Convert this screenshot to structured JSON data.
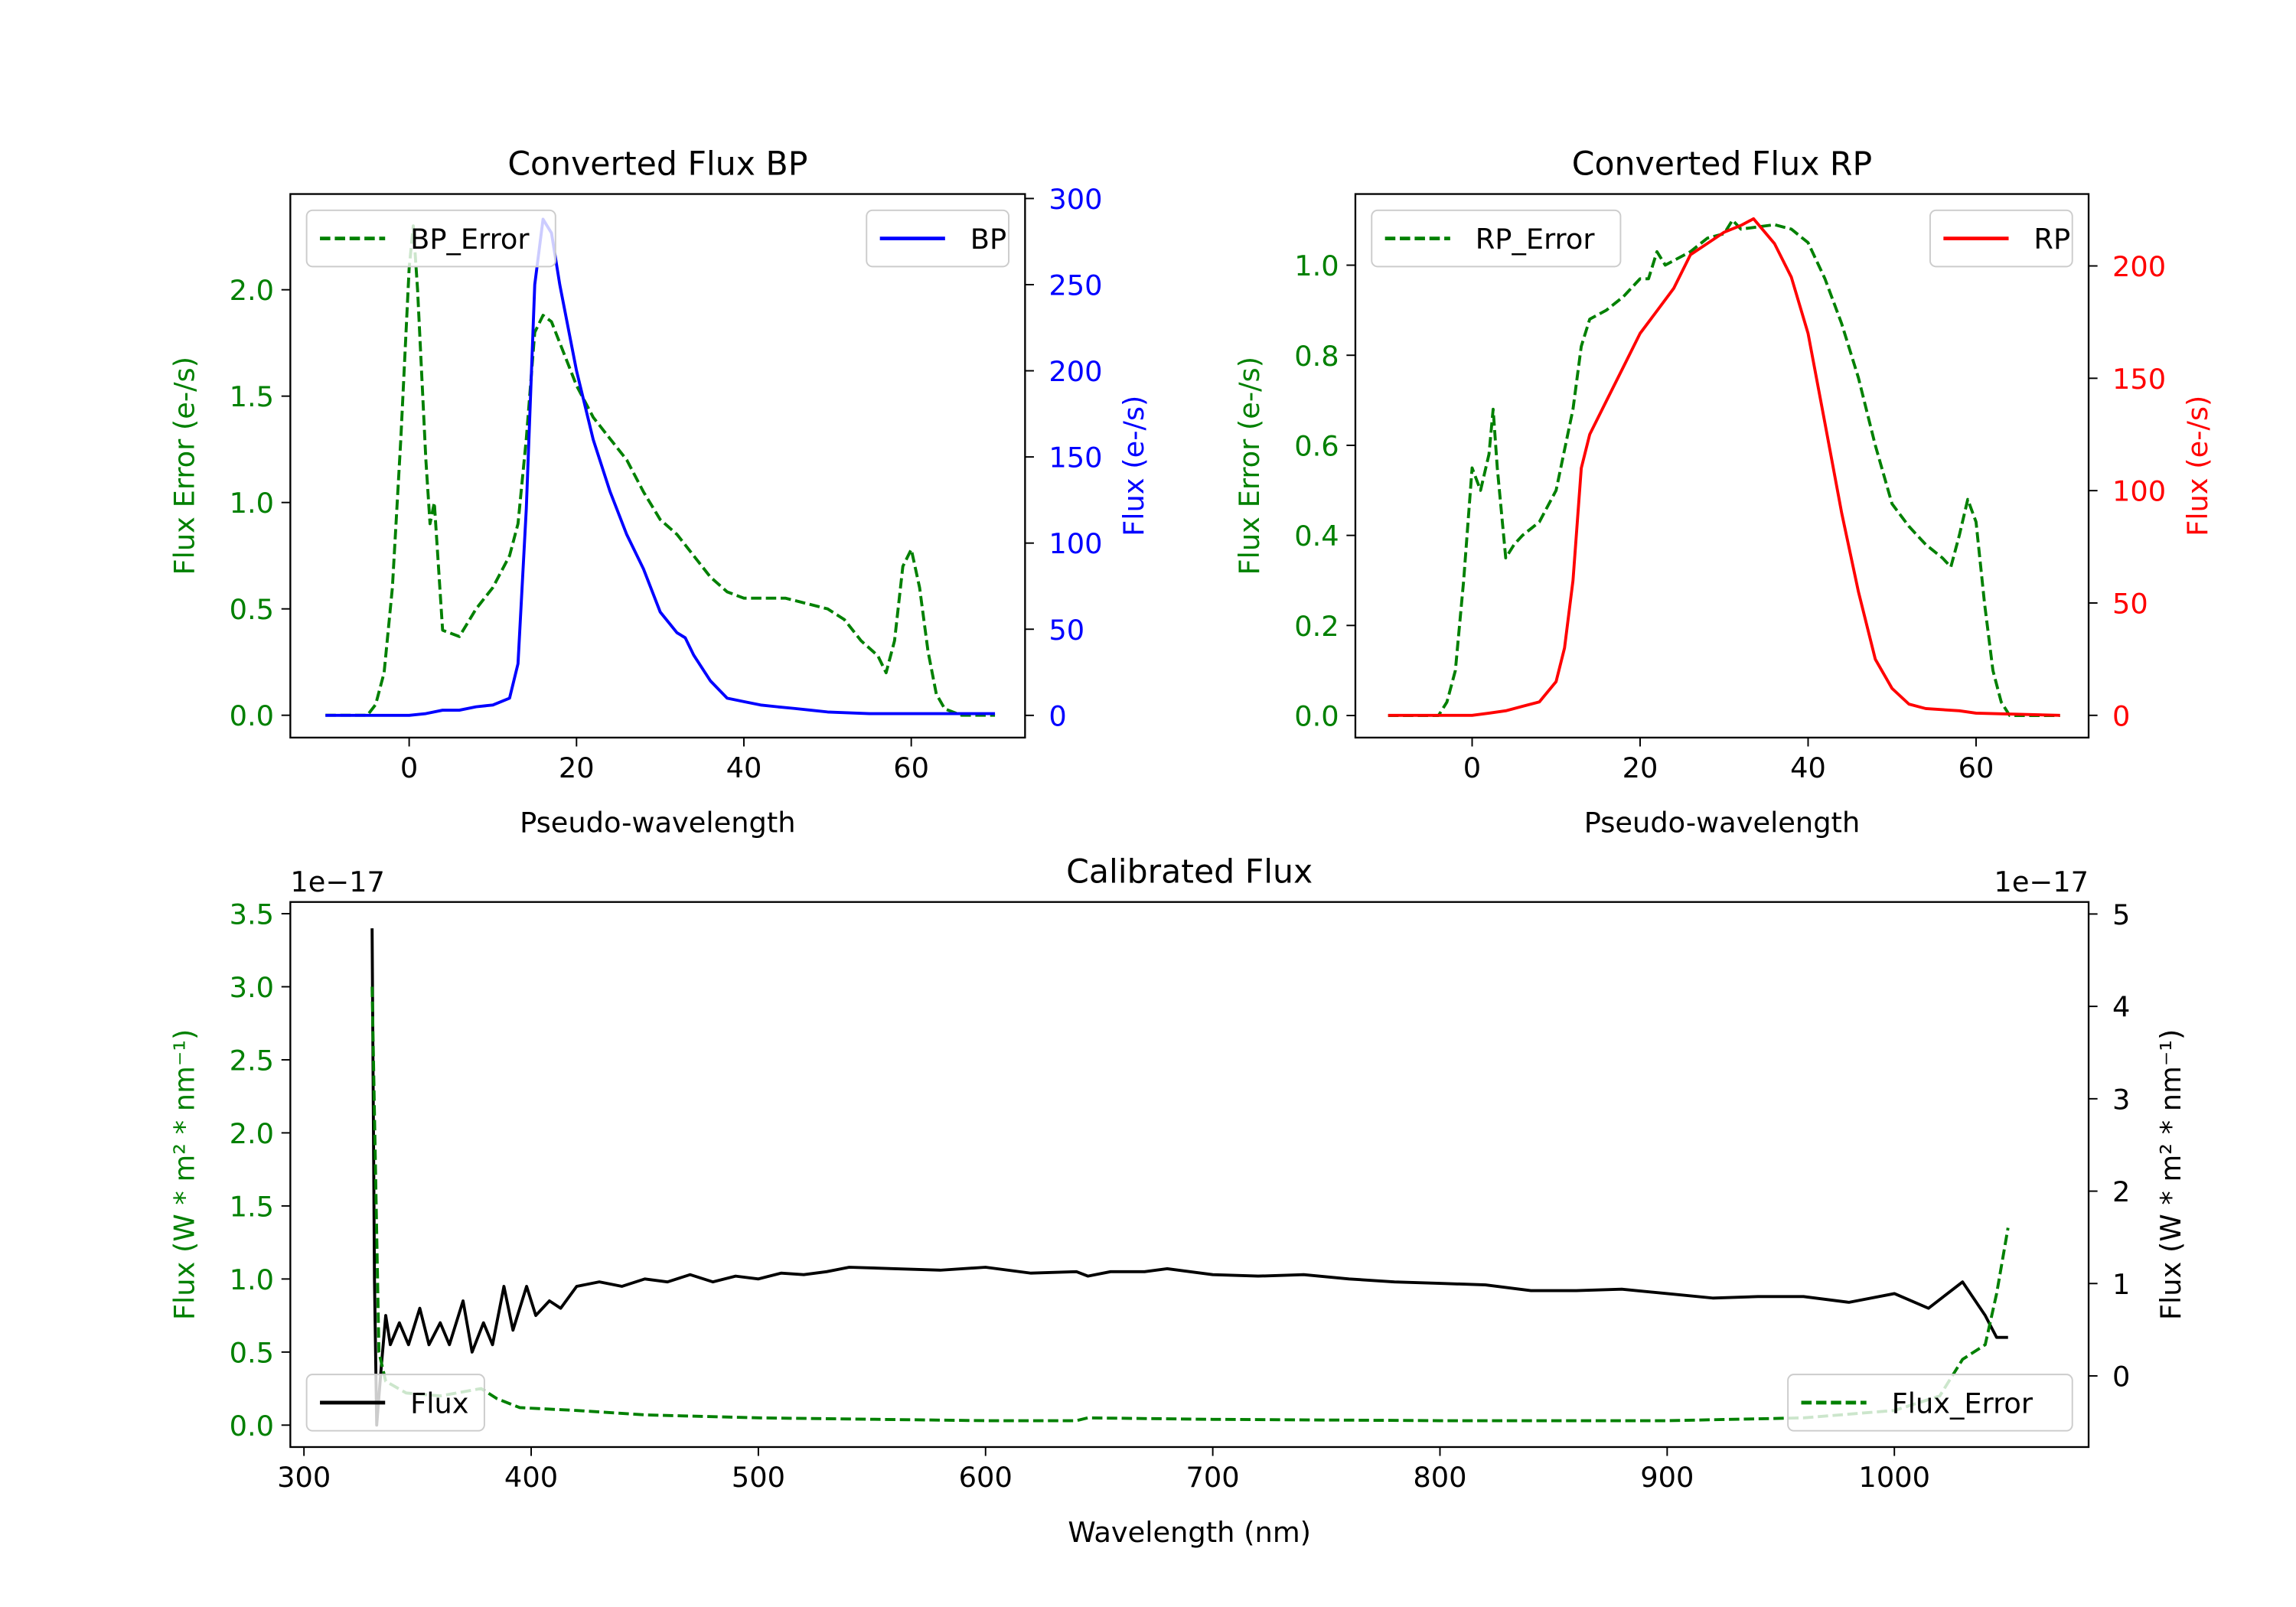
{
  "chart_data": [
    {
      "id": "bp",
      "type": "line",
      "title": "Converted Flux BP",
      "xlabel": "Pseudo-wavelength",
      "ylabel_left": "Flux Error (e-/s)",
      "ylabel_right": "Flux (e-/s)",
      "xlim": [
        -14.2,
        73.6
      ],
      "ylim_left": [
        -0.105,
        2.45
      ],
      "ylim_right": [
        -12.9,
        302.6
      ],
      "xticks": [
        0,
        20,
        40,
        60
      ],
      "yticks_left": [
        0.0,
        0.5,
        1.0,
        1.5,
        2.0
      ],
      "yticks_left_labels": [
        "0.0",
        "0.5",
        "1.0",
        "1.5",
        "2.0"
      ],
      "yticks_right": [
        0,
        50,
        100,
        150,
        200,
        250,
        300
      ],
      "left_color": "#008000",
      "right_color": "#0000ff",
      "legend_left": {
        "label": "BP_Error",
        "placement": "upper-left"
      },
      "legend_right": {
        "label": "BP",
        "placement": "upper-right"
      },
      "series": [
        {
          "name": "BP_Error",
          "axis": "left",
          "color": "#008000",
          "style": "dashed",
          "x": [
            -10,
            -5,
            -4,
            -3,
            -2,
            -1,
            0,
            0.5,
            1,
            2,
            2.5,
            3,
            3.5,
            4,
            6,
            8,
            10,
            12,
            13,
            14,
            15,
            16,
            17,
            18,
            20,
            22,
            24,
            26,
            28,
            30,
            32,
            34,
            36,
            38,
            40,
            45,
            50,
            52,
            54,
            56,
            57,
            58,
            59,
            60,
            61,
            62,
            63,
            64,
            66,
            70
          ],
          "y": [
            0,
            0,
            0.05,
            0.2,
            0.6,
            1.3,
            2.1,
            2.3,
            2.0,
            1.2,
            0.9,
            1.0,
            0.7,
            0.4,
            0.37,
            0.5,
            0.6,
            0.75,
            0.9,
            1.3,
            1.8,
            1.88,
            1.85,
            1.75,
            1.55,
            1.4,
            1.3,
            1.2,
            1.05,
            0.92,
            0.85,
            0.75,
            0.65,
            0.58,
            0.55,
            0.55,
            0.5,
            0.45,
            0.35,
            0.28,
            0.2,
            0.35,
            0.7,
            0.78,
            0.6,
            0.3,
            0.1,
            0.03,
            0,
            0
          ]
        },
        {
          "name": "BP",
          "axis": "right",
          "color": "#0000ff",
          "style": "solid",
          "x": [
            -10,
            0,
            2,
            4,
            6,
            8,
            10,
            11,
            12,
            13,
            14,
            15,
            16,
            17,
            18,
            20,
            22,
            24,
            26,
            28,
            30,
            32,
            33,
            34,
            36,
            38,
            40,
            42,
            44,
            46,
            48,
            50,
            55,
            60,
            70
          ],
          "y": [
            0,
            0,
            1,
            3,
            3,
            5,
            6,
            8,
            10,
            30,
            120,
            250,
            288,
            280,
            250,
            200,
            160,
            130,
            105,
            85,
            60,
            48,
            45,
            35,
            20,
            10,
            8,
            6,
            5,
            4,
            3,
            2,
            1,
            1,
            1
          ]
        }
      ]
    },
    {
      "id": "rp",
      "type": "line",
      "title": "Converted Flux RP",
      "xlabel": "Pseudo-wavelength",
      "ylabel_left": "Flux Error (e-/s)",
      "ylabel_right": "Flux (e-/s)",
      "xlim": [
        -13.9,
        73.4
      ],
      "ylim_left": [
        -0.049,
        1.158
      ],
      "ylim_right": [
        -9.9,
        232
      ],
      "xticks": [
        0,
        20,
        40,
        60
      ],
      "yticks_left": [
        0.0,
        0.2,
        0.4,
        0.6,
        0.8,
        1.0
      ],
      "yticks_left_labels": [
        "0.0",
        "0.2",
        "0.4",
        "0.6",
        "0.8",
        "1.0"
      ],
      "yticks_right": [
        0,
        50,
        100,
        150,
        200
      ],
      "left_color": "#008000",
      "right_color": "#ff0000",
      "legend_left": {
        "label": "RP_Error",
        "placement": "upper-left"
      },
      "legend_right": {
        "label": "RP",
        "placement": "upper-right"
      },
      "series": [
        {
          "name": "RP_Error",
          "axis": "left",
          "color": "#008000",
          "style": "dashed",
          "x": [
            -10,
            -4,
            -3,
            -2,
            -1,
            0,
            1,
            2,
            2.5,
            3,
            4,
            5,
            6,
            8,
            10,
            12,
            13,
            14,
            16,
            18,
            20,
            21,
            22,
            23,
            26,
            28,
            30,
            31,
            32,
            36,
            38,
            40,
            42,
            44,
            46,
            48,
            50,
            52,
            54,
            56,
            57,
            58,
            59,
            60,
            61,
            62,
            63,
            64,
            70
          ],
          "y": [
            0,
            0,
            0.03,
            0.1,
            0.3,
            0.55,
            0.5,
            0.58,
            0.68,
            0.55,
            0.35,
            0.38,
            0.4,
            0.43,
            0.5,
            0.68,
            0.82,
            0.88,
            0.9,
            0.93,
            0.97,
            0.97,
            1.03,
            1.0,
            1.03,
            1.06,
            1.07,
            1.1,
            1.08,
            1.09,
            1.08,
            1.05,
            0.97,
            0.87,
            0.75,
            0.6,
            0.47,
            0.42,
            0.38,
            0.35,
            0.33,
            0.4,
            0.48,
            0.43,
            0.25,
            0.1,
            0.03,
            0,
            0
          ]
        },
        {
          "name": "RP",
          "axis": "right",
          "color": "#ff0000",
          "style": "solid",
          "x": [
            -10,
            0,
            2,
            4,
            6,
            8,
            10,
            11,
            12,
            13,
            14,
            16,
            18,
            20,
            22,
            24,
            26,
            28,
            30,
            32,
            33.5,
            36,
            38,
            40,
            42,
            44,
            46,
            48,
            50,
            52,
            54,
            58,
            60,
            70
          ],
          "y": [
            0,
            0,
            1,
            2,
            4,
            6,
            15,
            30,
            60,
            110,
            125,
            140,
            155,
            170,
            180,
            190,
            205,
            210,
            215,
            218,
            221,
            210,
            195,
            170,
            130,
            90,
            55,
            25,
            12,
            5,
            3,
            2,
            1,
            0
          ]
        }
      ]
    },
    {
      "id": "cal",
      "type": "line",
      "title": "Calibrated Flux",
      "xlabel": "Wavelength (nm)",
      "ylabel_left": "Flux (W * m² * nm⁻¹)",
      "ylabel_right": "Flux (W * m² * nm⁻¹)",
      "offset_left": "1e−17",
      "offset_right": "1e−17",
      "xlim": [
        294,
        1085.5
      ],
      "ylim_left": [
        -0.15,
        3.58
      ],
      "ylim_right": [
        -0.77,
        5.13
      ],
      "xticks": [
        300,
        400,
        500,
        600,
        700,
        800,
        900,
        1000
      ],
      "yticks_left": [
        0.0,
        0.5,
        1.0,
        1.5,
        2.0,
        2.5,
        3.0,
        3.5
      ],
      "yticks_left_labels": [
        "0.0",
        "0.5",
        "1.0",
        "1.5",
        "2.0",
        "2.5",
        "3.0",
        "3.5"
      ],
      "yticks_right": [
        0,
        1,
        2,
        3,
        4,
        5
      ],
      "left_color": "#008000",
      "right_color": "#000000",
      "legend_left": {
        "label": "Flux",
        "placement": "lower-left"
      },
      "legend_right": {
        "label": "Flux_Error",
        "placement": "lower-right"
      },
      "series": [
        {
          "name": "Flux",
          "axis": "left",
          "color": "#000000",
          "style": "solid",
          "x": [
            330,
            331,
            332,
            334,
            336,
            338,
            342,
            346,
            351,
            355,
            360,
            364,
            370,
            374,
            379,
            383,
            388,
            392,
            398,
            402,
            408,
            413,
            420,
            430,
            440,
            450,
            460,
            470,
            480,
            490,
            500,
            510,
            520,
            530,
            540,
            560,
            580,
            600,
            620,
            640,
            645,
            655,
            670,
            680,
            700,
            720,
            740,
            760,
            780,
            800,
            820,
            840,
            860,
            880,
            900,
            920,
            940,
            960,
            980,
            1000,
            1015,
            1030,
            1040,
            1045,
            1050
          ],
          "y": [
            3.4,
            1.0,
            0.0,
            0.4,
            0.75,
            0.55,
            0.7,
            0.55,
            0.8,
            0.55,
            0.7,
            0.55,
            0.85,
            0.5,
            0.7,
            0.55,
            0.95,
            0.65,
            0.95,
            0.75,
            0.85,
            0.8,
            0.95,
            0.98,
            0.95,
            1.0,
            0.98,
            1.03,
            0.98,
            1.02,
            1.0,
            1.04,
            1.03,
            1.05,
            1.08,
            1.07,
            1.06,
            1.08,
            1.04,
            1.05,
            1.02,
            1.05,
            1.05,
            1.07,
            1.03,
            1.02,
            1.03,
            1.0,
            0.98,
            0.97,
            0.96,
            0.92,
            0.92,
            0.93,
            0.9,
            0.87,
            0.88,
            0.88,
            0.84,
            0.9,
            0.8,
            0.98,
            0.75,
            0.6,
            0.6
          ]
        },
        {
          "name": "Flux_Error",
          "axis": "left",
          "color": "#008000",
          "style": "dashed",
          "x": [
            330,
            333,
            336,
            345,
            360,
            378,
            385,
            395,
            420,
            450,
            500,
            600,
            640,
            645,
            700,
            800,
            900,
            960,
            1000,
            1020,
            1030,
            1040,
            1045,
            1050
          ],
          "y": [
            3.0,
            0.5,
            0.3,
            0.22,
            0.2,
            0.25,
            0.18,
            0.12,
            0.1,
            0.07,
            0.05,
            0.03,
            0.03,
            0.05,
            0.04,
            0.03,
            0.03,
            0.05,
            0.1,
            0.2,
            0.45,
            0.55,
            0.9,
            1.35
          ]
        }
      ]
    }
  ]
}
